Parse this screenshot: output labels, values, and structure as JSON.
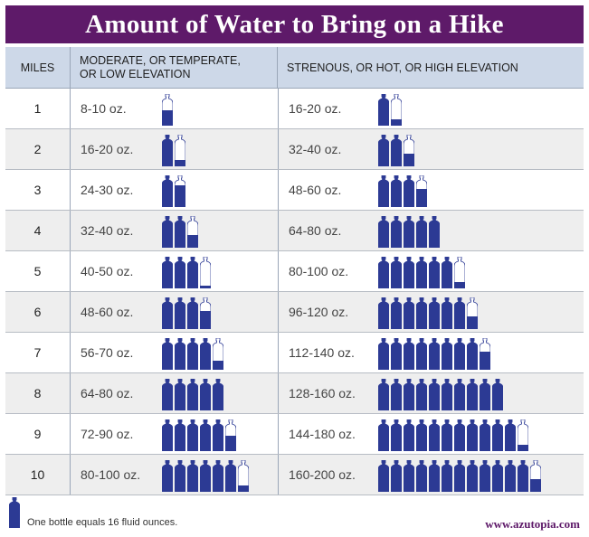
{
  "title": "Amount of Water to Bring on a Hike",
  "headers": {
    "miles": "MILES",
    "moderate": "MODERATE, OR TEMPERATE,\nOR LOW ELEVATION",
    "strenuous": "STRENOUS, OR HOT, OR HIGH ELEVATION"
  },
  "rows": [
    {
      "miles": "1",
      "moderate": "8-10 oz.",
      "strenuous": "16-20 oz.",
      "mod_bottles": 0.625,
      "str_bottles": 1.25
    },
    {
      "miles": "2",
      "moderate": "16-20 oz.",
      "strenuous": "32-40 oz.",
      "mod_bottles": 1.25,
      "str_bottles": 2.5
    },
    {
      "miles": "3",
      "moderate": "24-30 oz.",
      "strenuous": "48-60 oz.",
      "mod_bottles": 1.875,
      "str_bottles": 3.75
    },
    {
      "miles": "4",
      "moderate": "32-40 oz.",
      "strenuous": "64-80 oz.",
      "mod_bottles": 2.5,
      "str_bottles": 5
    },
    {
      "miles": "5",
      "moderate": "40-50 oz.",
      "strenuous": "80-100 oz.",
      "mod_bottles": 3.125,
      "str_bottles": 6.25
    },
    {
      "miles": "6",
      "moderate": "48-60 oz.",
      "strenuous": "96-120 oz.",
      "mod_bottles": 3.75,
      "str_bottles": 7.5
    },
    {
      "miles": "7",
      "moderate": "56-70 oz.",
      "strenuous": "112-140 oz.",
      "mod_bottles": 4.375,
      "str_bottles": 8.75
    },
    {
      "miles": "8",
      "moderate": "64-80 oz.",
      "strenuous": "128-160 oz.",
      "mod_bottles": 5,
      "str_bottles": 10
    },
    {
      "miles": "9",
      "moderate": "72-90 oz.",
      "strenuous": "144-180 oz.",
      "mod_bottles": 5.625,
      "str_bottles": 11.25
    },
    {
      "miles": "10",
      "moderate": "80-100 oz.",
      "strenuous": "160-200 oz.",
      "mod_bottles": 6.25,
      "str_bottles": 12.5
    }
  ],
  "legend": "One bottle equals 16 fluid ounces.",
  "website": "www.azutopia.com",
  "colors": {
    "header_band": "#5e1a69",
    "bottle": "#2c3a94",
    "column_header": "#cdd8e8"
  }
}
